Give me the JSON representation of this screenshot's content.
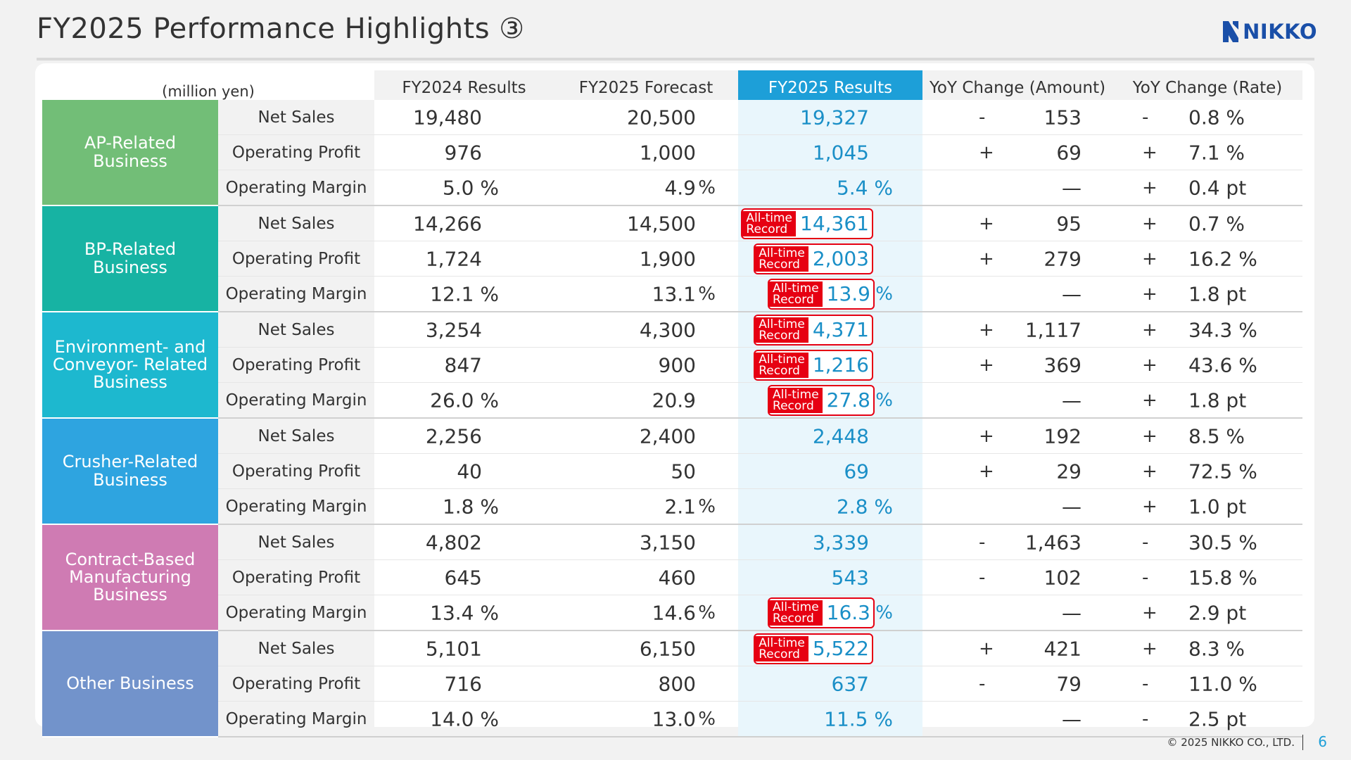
{
  "header": {
    "title": "FY2025 Performance Highlights ③",
    "logo_text": "NIKKO"
  },
  "table": {
    "unit": "(million yen)",
    "columns": [
      "FY2024 Results",
      "FY2025 Forecast",
      "FY2025 Results",
      "YoY Change (Amount)",
      "YoY Change (Rate)"
    ],
    "record_badge": [
      "All-time",
      "Record"
    ],
    "segments": [
      {
        "name": "AP-Related Business",
        "color": "#72be77",
        "rows": [
          {
            "metric": "Net Sales",
            "fy24": "19,480",
            "fc": "20,500",
            "res": "19,327",
            "amt_sign": "-",
            "amt": "153",
            "rate_sign": "-",
            "rate": "0.8 %"
          },
          {
            "metric": "Operating Profit",
            "fy24": "976",
            "fc": "1,000",
            "res": "1,045",
            "amt_sign": "+",
            "amt": "69",
            "rate_sign": "+",
            "rate": "7.1 %"
          },
          {
            "metric": "Operating Margin",
            "fy24": "5.0 %",
            "fc": "4.9",
            "fc_pct": "%",
            "res": "5.4 %",
            "amt_sign": "",
            "amt": "—",
            "rate_sign": "+",
            "rate": "0.4 pt"
          }
        ]
      },
      {
        "name": "BP-Related Business",
        "color": "#17b3a3",
        "rows": [
          {
            "metric": "Net Sales",
            "fy24": "14,266",
            "fc": "14,500",
            "res": "14,361",
            "record": true,
            "amt_sign": "+",
            "amt": "95",
            "rate_sign": "+",
            "rate": "0.7 %"
          },
          {
            "metric": "Operating Profit",
            "fy24": "1,724",
            "fc": "1,900",
            "res": "2,003",
            "record": true,
            "amt_sign": "+",
            "amt": "279",
            "rate_sign": "+",
            "rate": "16.2 %"
          },
          {
            "metric": "Operating Margin",
            "fy24": "12.1 %",
            "fc": "13.1",
            "fc_pct": "%",
            "res": "13.9",
            "res_pct": "%",
            "record": true,
            "amt_sign": "",
            "amt": "—",
            "rate_sign": "+",
            "rate": "1.8 pt"
          }
        ]
      },
      {
        "name": "Environment- and Conveyor- Related Business",
        "color": "#1db8cf",
        "rows": [
          {
            "metric": "Net Sales",
            "fy24": "3,254",
            "fc": "4,300",
            "res": "4,371",
            "record": true,
            "amt_sign": "+",
            "amt": "1,117",
            "rate_sign": "+",
            "rate": "34.3 %"
          },
          {
            "metric": "Operating Profit",
            "fy24": "847",
            "fc": "900",
            "res": "1,216",
            "record": true,
            "amt_sign": "+",
            "amt": "369",
            "rate_sign": "+",
            "rate": "43.6 %"
          },
          {
            "metric": "Operating Margin",
            "fy24": "26.0 %",
            "fc": "20.9",
            "res": "27.8",
            "res_pct": "%",
            "record": true,
            "amt_sign": "",
            "amt": "—",
            "rate_sign": "+",
            "rate": "1.8 pt"
          }
        ]
      },
      {
        "name": "Crusher-Related Business",
        "color": "#2ea4e0",
        "rows": [
          {
            "metric": "Net Sales",
            "fy24": "2,256",
            "fc": "2,400",
            "res": "2,448",
            "amt_sign": "+",
            "amt": "192",
            "rate_sign": "+",
            "rate": "8.5 %"
          },
          {
            "metric": "Operating Profit",
            "fy24": "40",
            "fc": "50",
            "res": "69",
            "amt_sign": "+",
            "amt": "29",
            "rate_sign": "+",
            "rate": "72.5 %"
          },
          {
            "metric": "Operating Margin",
            "fy24": "1.8 %",
            "fc": "2.1",
            "fc_pct": "%",
            "res": "2.8 %",
            "amt_sign": "",
            "amt": "—",
            "rate_sign": "+",
            "rate": "1.0 pt"
          }
        ]
      },
      {
        "name": "Contract-Based Manufacturing Business",
        "color": "#cf7bb3",
        "rows": [
          {
            "metric": "Net Sales",
            "fy24": "4,802",
            "fc": "3,150",
            "res": "3,339",
            "amt_sign": "-",
            "amt": "1,463",
            "rate_sign": "-",
            "rate": "30.5 %"
          },
          {
            "metric": "Operating Profit",
            "fy24": "645",
            "fc": "460",
            "res": "543",
            "amt_sign": "-",
            "amt": "102",
            "rate_sign": "-",
            "rate": "15.8 %"
          },
          {
            "metric": "Operating Margin",
            "fy24": "13.4 %",
            "fc": "14.6",
            "fc_pct": "%",
            "res": "16.3",
            "res_pct": "%",
            "record": true,
            "amt_sign": "",
            "amt": "—",
            "rate_sign": "+",
            "rate": "2.9 pt"
          }
        ]
      },
      {
        "name": "Other Business",
        "color": "#7293cb",
        "rows": [
          {
            "metric": "Net Sales",
            "fy24": "5,101",
            "fc": "6,150",
            "res": "5,522",
            "record": true,
            "amt_sign": "+",
            "amt": "421",
            "rate_sign": "+",
            "rate": "8.3 %"
          },
          {
            "metric": "Operating Profit",
            "fy24": "716",
            "fc": "800",
            "res": "637",
            "amt_sign": "-",
            "amt": "79",
            "rate_sign": "-",
            "rate": "11.0 %"
          },
          {
            "metric": "Operating Margin",
            "fy24": "14.0 %",
            "fc": "13.0",
            "fc_pct": "%",
            "res": "11.5 %",
            "amt_sign": "",
            "amt": "—",
            "rate_sign": "-",
            "rate": "2.5 pt"
          }
        ]
      }
    ]
  },
  "footer": {
    "copyright": "© 2025 NIKKO CO., LTD.",
    "page": "6"
  }
}
